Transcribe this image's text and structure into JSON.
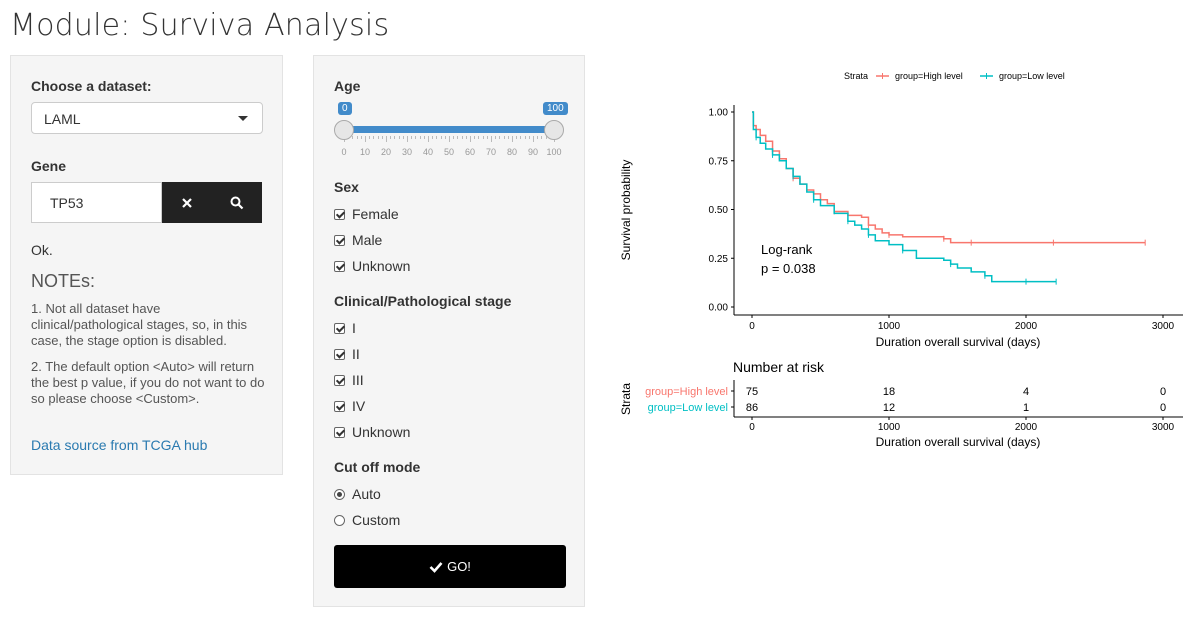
{
  "page_title": "Module: Surviva Analysis",
  "left_panel": {
    "dataset_label": "Choose a dataset:",
    "dataset_value": "LAML",
    "gene_label": "Gene",
    "gene_value": "TP53",
    "status": "Ok.",
    "notes_title": "NOTEs:",
    "note1": "1. Not all dataset have clinical/pathological stages, so, in this case, the stage option is disabled.",
    "note2": "2. The default option <Auto> will return the best p value, if you do not want to do so please choose <Custom>.",
    "link": "Data source from TCGA hub"
  },
  "filter_panel": {
    "age_label": "Age",
    "age_min": "0",
    "age_max": "100",
    "age_ticks": [
      "0",
      "10",
      "20",
      "30",
      "40",
      "50",
      "60",
      "70",
      "80",
      "90",
      "100"
    ],
    "sex_label": "Sex",
    "sex_options": [
      "Female",
      "Male",
      "Unknown"
    ],
    "stage_label": "Clinical/Pathological stage",
    "stage_options": [
      "I",
      "II",
      "III",
      "IV",
      "Unknown"
    ],
    "cutoff_label": "Cut off mode",
    "cutoff_options": [
      "Auto",
      "Custom"
    ],
    "cutoff_selected": "Auto",
    "go_label": "GO!"
  },
  "chart_data": {
    "type": "line",
    "legend_title": "Strata",
    "legend_position": "top",
    "xlabel": "Duration overall survival (days)",
    "ylabel": "Survival probability",
    "xlim": [
      0,
      3000
    ],
    "ylim": [
      0,
      1
    ],
    "xticks": [
      "0",
      "1000",
      "2000",
      "3000"
    ],
    "yticks": [
      "0.00",
      "0.25",
      "0.50",
      "0.75",
      "1.00"
    ],
    "annotation_line1": "Log-rank",
    "annotation_line2": "p = 0.038",
    "series": [
      {
        "name": "group=High level",
        "color": "#F8766D",
        "x": [
          0,
          10,
          30,
          60,
          100,
          150,
          200,
          250,
          300,
          350,
          400,
          450,
          500,
          550,
          600,
          700,
          800,
          850,
          900,
          950,
          1000,
          1100,
          1200,
          1400,
          1450,
          1500,
          1600,
          1800,
          2000,
          2200,
          2500,
          2870
        ],
        "y": [
          1.0,
          0.93,
          0.91,
          0.88,
          0.85,
          0.8,
          0.76,
          0.71,
          0.66,
          0.63,
          0.6,
          0.58,
          0.55,
          0.53,
          0.49,
          0.47,
          0.46,
          0.42,
          0.4,
          0.38,
          0.37,
          0.36,
          0.36,
          0.35,
          0.33,
          0.33,
          0.33,
          0.33,
          0.33,
          0.33,
          0.33,
          0.33
        ]
      },
      {
        "name": "group=Low level",
        "color": "#00BFC4",
        "x": [
          0,
          10,
          30,
          60,
          100,
          150,
          200,
          250,
          300,
          350,
          400,
          450,
          500,
          600,
          700,
          750,
          800,
          850,
          900,
          1000,
          1100,
          1200,
          1400,
          1450,
          1500,
          1600,
          1700,
          1750,
          1800,
          2000,
          2220
        ],
        "y": [
          1.0,
          0.91,
          0.87,
          0.84,
          0.81,
          0.78,
          0.75,
          0.71,
          0.67,
          0.63,
          0.59,
          0.55,
          0.52,
          0.48,
          0.44,
          0.42,
          0.4,
          0.37,
          0.34,
          0.32,
          0.29,
          0.25,
          0.24,
          0.22,
          0.2,
          0.18,
          0.16,
          0.13,
          0.13,
          0.13,
          0.13
        ]
      }
    ],
    "risk_table": {
      "title": "Number at risk",
      "ylabel": "Strata",
      "xlabel": "Duration overall survival (days)",
      "time_points": [
        0,
        1000,
        2000,
        3000
      ],
      "rows": [
        {
          "name": "group=High level",
          "counts": [
            "75",
            "18",
            "4",
            "0"
          ]
        },
        {
          "name": "group=Low level",
          "counts": [
            "86",
            "12",
            "1",
            "0"
          ]
        }
      ]
    }
  }
}
